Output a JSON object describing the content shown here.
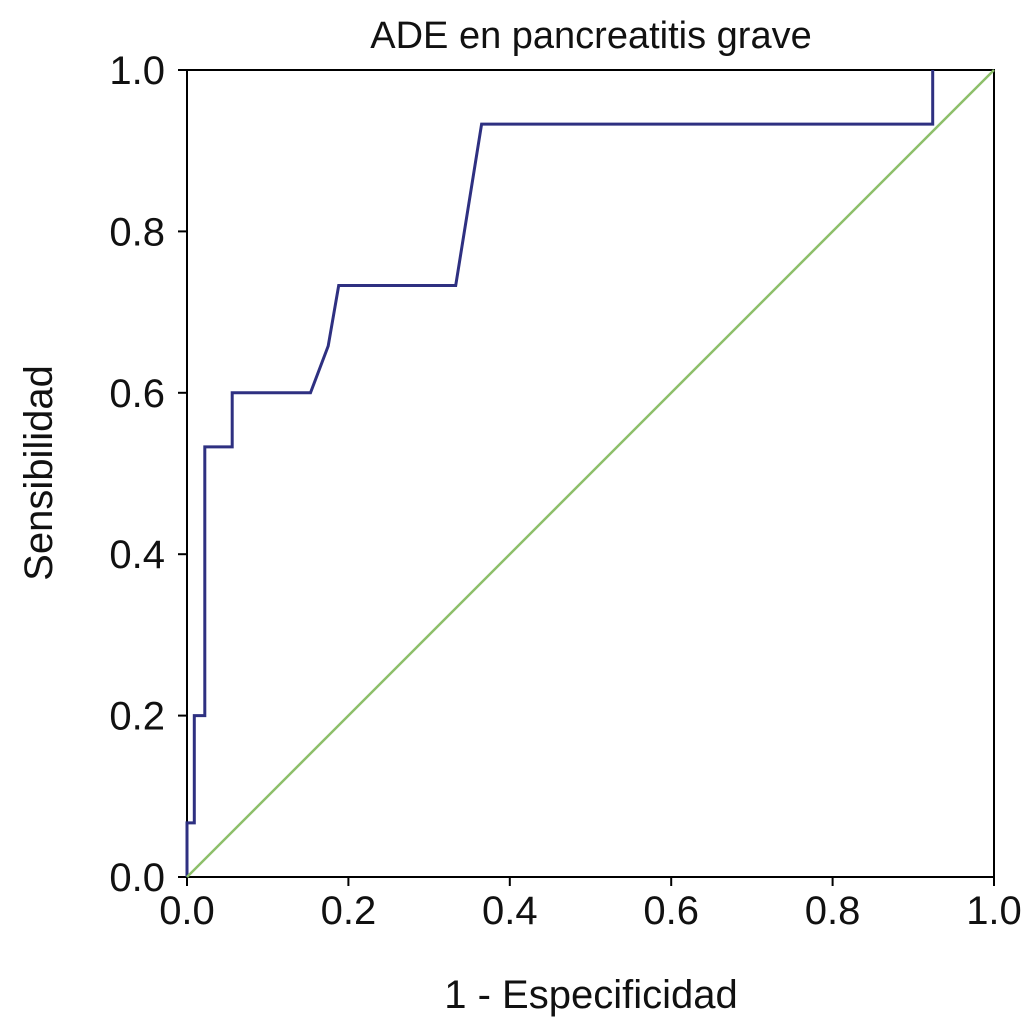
{
  "chart_data": {
    "type": "line",
    "title": "ADE en pancreatitis grave",
    "xlabel": "1 - Especificidad",
    "ylabel": "Sensibilidad",
    "xlim": [
      0,
      1
    ],
    "ylim": [
      0,
      1
    ],
    "x_ticks": [
      "0.0",
      "0.2",
      "0.4",
      "0.6",
      "0.8",
      "1.0"
    ],
    "y_ticks": [
      "0.0",
      "0.2",
      "0.4",
      "0.6",
      "0.8",
      "1.0"
    ],
    "grid": false,
    "legend": "none",
    "series": [
      {
        "color": "#2e3081",
        "x": [
          0.0,
          0.0,
          0.009,
          0.009,
          0.022,
          0.022,
          0.056,
          0.056,
          0.153,
          0.175,
          0.188,
          0.333,
          0.365,
          0.924,
          0.924
        ],
        "y": [
          0.0,
          0.067,
          0.067,
          0.2,
          0.2,
          0.533,
          0.533,
          0.6,
          0.6,
          0.658,
          0.733,
          0.733,
          0.933,
          0.933,
          1.0
        ]
      },
      {
        "color": "#8dbf6a",
        "x": [
          0.0,
          1.0
        ],
        "y": [
          0.0,
          1.0
        ]
      }
    ]
  }
}
